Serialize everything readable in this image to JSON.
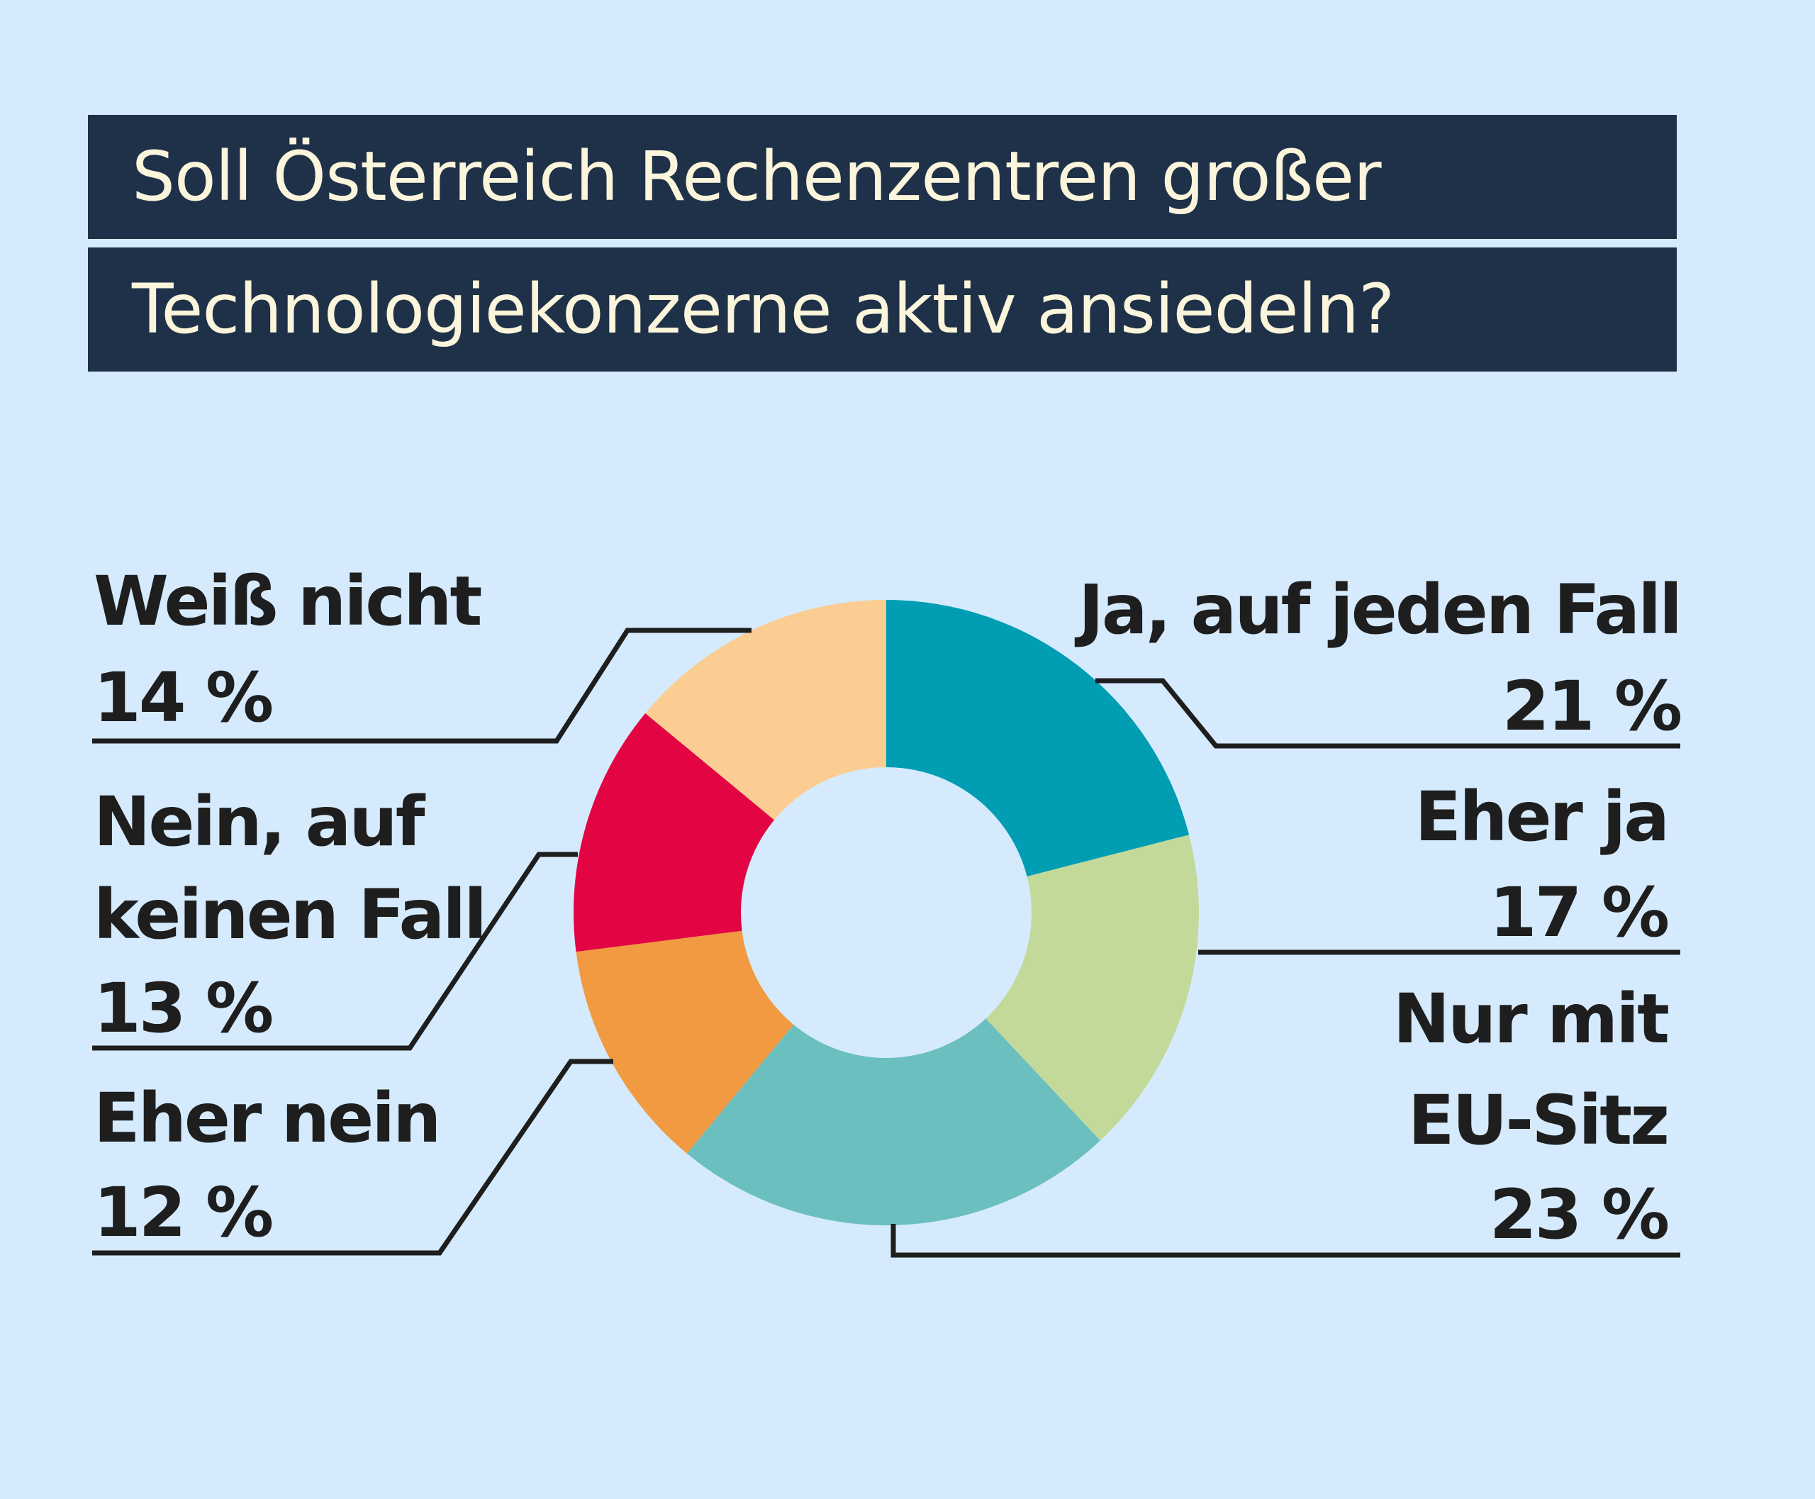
{
  "title_lines": [
    "Soll Österreich Rechenzentren großer",
    "Technologiekonzerne aktiv ansiedeln?"
  ],
  "chart_data": {
    "type": "pie",
    "variant": "donut",
    "slices": [
      {
        "label_lines": [
          "Ja, auf jeden Fall"
        ],
        "value": 21,
        "value_label": "21 %",
        "color": "#009db3",
        "side": "right"
      },
      {
        "label_lines": [
          "Eher ja"
        ],
        "value": 17,
        "value_label": "17 %",
        "color": "#c3d99a",
        "side": "right"
      },
      {
        "label_lines": [
          "Nur mit",
          "EU-Sitz"
        ],
        "value": 23,
        "value_label": "23 %",
        "color": "#6bbfbf",
        "side": "right"
      },
      {
        "label_lines": [
          "Eher nein"
        ],
        "value": 12,
        "value_label": "12 %",
        "color": "#f19a41",
        "side": "left"
      },
      {
        "label_lines": [
          "Nein, auf",
          "keinen Fall"
        ],
        "value": 13,
        "value_label": "13 %",
        "color": "#e30543",
        "side": "left"
      },
      {
        "label_lines": [
          "Weiß nicht"
        ],
        "value": 14,
        "value_label": "14 %",
        "color": "#fbcd92",
        "side": "left"
      }
    ],
    "legend": "callout-labels"
  },
  "colors": {
    "background": "#d5ebfd",
    "title_bar": "#1f3148",
    "title_text": "#fbf5dc",
    "label_text": "#1e1e1e",
    "leader_line": "#1e1e1e"
  }
}
